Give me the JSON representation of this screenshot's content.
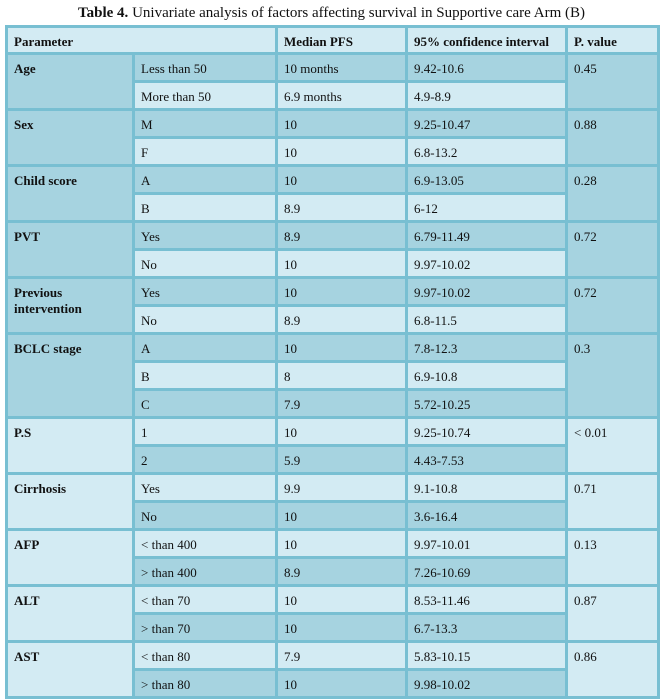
{
  "caption": {
    "label": "Table 4.",
    "text": " Univariate analysis of factors affecting survival in Supportive care Arm (B)"
  },
  "headers": [
    "Parameter",
    "Median PFS",
    "95% confidence interval",
    "P. value"
  ],
  "colors": {
    "dark_row": "#a6d3e0",
    "light_row": "#d3ebf3",
    "border": "#78bfd2"
  },
  "groups": [
    {
      "name": "Age",
      "p": "0.45",
      "rows": [
        [
          "Less than 50",
          "10 months",
          "9.42-10.6"
        ],
        [
          "More than 50",
          "6.9 months",
          "4.9-8.9"
        ]
      ]
    },
    {
      "name": "Sex",
      "p": "0.88",
      "rows": [
        [
          "M",
          "10",
          "9.25-10.47"
        ],
        [
          "F",
          "10",
          "6.8-13.2"
        ]
      ]
    },
    {
      "name": "Child score",
      "p": "0.28",
      "rows": [
        [
          "A",
          "10",
          "6.9-13.05"
        ],
        [
          "B",
          "8.9",
          "6-12"
        ]
      ]
    },
    {
      "name": "PVT",
      "p": "0.72",
      "rows": [
        [
          "Yes",
          "8.9",
          "6.79-11.49"
        ],
        [
          "No",
          "10",
          "9.97-10.02"
        ]
      ]
    },
    {
      "name": "Previous intervention",
      "p": "0.72",
      "rows": [
        [
          "Yes",
          "10",
          "9.97-10.02"
        ],
        [
          "No",
          "8.9",
          "6.8-11.5"
        ]
      ]
    },
    {
      "name": "BCLC stage",
      "p": "0.3",
      "rows": [
        [
          "A",
          "10",
          "7.8-12.3"
        ],
        [
          "B",
          "8",
          "6.9-10.8"
        ],
        [
          "C",
          "7.9",
          "5.72-10.25"
        ]
      ]
    },
    {
      "name": "P.S",
      "p": "< 0.01",
      "rows": [
        [
          "1",
          "10",
          "9.25-10.74"
        ],
        [
          "2",
          "5.9",
          "4.43-7.53"
        ]
      ]
    },
    {
      "name": "Cirrhosis",
      "p": "0.71",
      "rows": [
        [
          "Yes",
          "9.9",
          "9.1-10.8"
        ],
        [
          "No",
          "10",
          "3.6-16.4"
        ]
      ]
    },
    {
      "name": "AFP",
      "p": "0.13",
      "rows": [
        [
          "< than 400",
          "10",
          "9.97-10.01"
        ],
        [
          "> than 400",
          "8.9",
          "7.26-10.69"
        ]
      ]
    },
    {
      "name": "ALT",
      "p": "0.87",
      "rows": [
        [
          "< than 70",
          "10",
          "8.53-11.46"
        ],
        [
          "> than 70",
          "10",
          "6.7-13.3"
        ]
      ]
    },
    {
      "name": "AST",
      "p": "0.86",
      "rows": [
        [
          "< than 80",
          "7.9",
          "5.83-10.15"
        ],
        [
          "> than 80",
          "10",
          "9.98-10.02"
        ]
      ]
    }
  ]
}
